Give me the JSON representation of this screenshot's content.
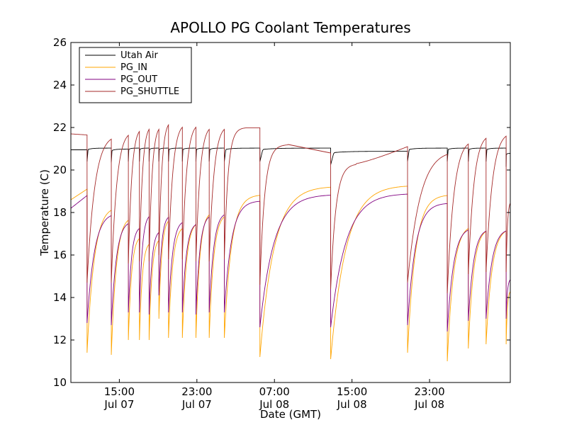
{
  "chart_data": {
    "type": "line",
    "title": "APOLLO PG Coolant Temperatures",
    "xlabel": "Date (GMT)",
    "ylabel": "Temperature (C)",
    "x_unit": "hours since Jul 07 10:00 GMT",
    "xlim": [
      0,
      45.33
    ],
    "ylim": [
      10,
      26
    ],
    "yticks": [
      10,
      12,
      14,
      16,
      18,
      20,
      22,
      24,
      26
    ],
    "xticks": [
      {
        "x": 5,
        "line1": "15:00",
        "line2": "Jul 07"
      },
      {
        "x": 13,
        "line1": "23:00",
        "line2": "Jul 07"
      },
      {
        "x": 21,
        "line1": "07:00",
        "line2": "Jul 08"
      },
      {
        "x": 29,
        "line1": "15:00",
        "line2": "Jul 08"
      },
      {
        "x": 37,
        "line1": "23:00",
        "line2": "Jul 08"
      }
    ],
    "legend_position": "upper-left",
    "cycles": [
      {
        "start": 1.67,
        "end": 4.17,
        "air": 20.95,
        "in_start": 11.4,
        "in_end": 18.7,
        "out_start": 12.8,
        "out_end": 18.3,
        "sh_start": 14.7,
        "sh_end": 22.2
      },
      {
        "start": 4.17,
        "end": 5.93,
        "air": 20.9,
        "in_start": 11.3,
        "in_end": 18.2,
        "out_start": 12.7,
        "out_end": 17.9,
        "sh_start": 14.7,
        "sh_end": 22.4
      },
      {
        "start": 5.93,
        "end": 7.07,
        "air": 20.95,
        "in_start": 12.0,
        "in_end": 17.2,
        "out_start": 13.3,
        "out_end": 17.6,
        "sh_start": 15.6,
        "sh_end": 22.5
      },
      {
        "start": 7.07,
        "end": 8.07,
        "air": 20.95,
        "in_start": 12.0,
        "in_end": 16.9,
        "out_start": 13.3,
        "out_end": 18.2,
        "sh_start": 15.7,
        "sh_end": 22.6
      },
      {
        "start": 8.07,
        "end": 9.08,
        "air": 20.95,
        "in_start": 12.0,
        "in_end": 17.1,
        "out_start": 13.2,
        "out_end": 17.4,
        "sh_start": 15.7,
        "sh_end": 22.6
      },
      {
        "start": 9.08,
        "end": 10.07,
        "air": 20.95,
        "in_start": 13.0,
        "in_end": 18.0,
        "out_start": 14.1,
        "out_end": 18.1,
        "sh_start": 16.0,
        "sh_end": 22.8
      },
      {
        "start": 10.07,
        "end": 11.5,
        "air": 20.95,
        "in_start": 12.1,
        "in_end": 17.7,
        "out_start": 13.3,
        "out_end": 17.9,
        "sh_start": 15.8,
        "sh_end": 22.7
      },
      {
        "start": 11.5,
        "end": 12.9,
        "air": 20.95,
        "in_start": 12.1,
        "in_end": 17.9,
        "out_start": 13.3,
        "out_end": 17.8,
        "sh_start": 15.8,
        "sh_end": 22.7
      },
      {
        "start": 12.9,
        "end": 14.27,
        "air": 20.95,
        "in_start": 12.1,
        "in_end": 18.4,
        "out_start": 13.2,
        "out_end": 18.2,
        "sh_start": 15.7,
        "sh_end": 22.6
      },
      {
        "start": 14.27,
        "end": 15.83,
        "air": 20.95,
        "in_start": 12.1,
        "in_end": 18.3,
        "out_start": 13.3,
        "out_end": 18.3,
        "sh_start": 15.7,
        "sh_end": 22.6
      },
      {
        "start": 15.83,
        "end": 19.5,
        "air": 20.95,
        "in_start": 12.1,
        "in_end": 18.9,
        "out_start": 13.3,
        "out_end": 18.6,
        "sh_start": 15.8,
        "sh_end": 22.0,
        "sh_plateau": true
      },
      {
        "start": 19.5,
        "end": 26.8,
        "air": 20.95,
        "in_start": 11.2,
        "in_end": 19.3,
        "out_start": 12.6,
        "out_end": 18.9,
        "sh_start": 14.6,
        "sh_end": 21.2,
        "sh_drift_end": 20.8
      },
      {
        "start": 26.8,
        "end": 34.73,
        "air": 20.8,
        "in_start": 11.1,
        "in_end": 19.35,
        "out_start": 12.6,
        "out_end": 18.95,
        "sh_start": 14.4,
        "sh_end": 21.1,
        "sh_lag": true
      },
      {
        "start": 34.73,
        "end": 38.83,
        "air": 20.95,
        "in_start": 11.4,
        "in_end": 18.9,
        "out_start": 12.7,
        "out_end": 18.5,
        "sh_start": 14.7,
        "sh_end": 21.4
      },
      {
        "start": 38.83,
        "end": 41.0,
        "air": 20.95,
        "in_start": 11.0,
        "in_end": 17.8,
        "out_start": 12.4,
        "out_end": 17.6,
        "sh_start": 14.2,
        "sh_end": 22.0
      },
      {
        "start": 41.0,
        "end": 42.83,
        "air": 20.95,
        "in_start": 11.6,
        "in_end": 17.6,
        "out_start": 12.9,
        "out_end": 17.5,
        "sh_start": 15.1,
        "sh_end": 22.2
      },
      {
        "start": 42.83,
        "end": 44.9,
        "air": 20.95,
        "in_start": 11.8,
        "in_end": 17.6,
        "out_start": 13.0,
        "out_end": 17.5,
        "sh_start": 15.2,
        "sh_end": 22.3
      },
      {
        "start": 44.9,
        "end": 45.33,
        "air": 20.7,
        "in_start": 11.8,
        "in_end": 14.5,
        "out_start": 13.0,
        "out_end": 15.0,
        "sh_start": 15.2,
        "sh_end": 18.8
      }
    ],
    "initial": {
      "air": 20.95,
      "in": 18.6,
      "in_end": 19.1,
      "out": 18.2,
      "out_end": 18.8,
      "sh": 21.7,
      "sh_end": 21.65
    },
    "series": [
      {
        "name": "Utah Air",
        "key": "air",
        "color": "#000000"
      },
      {
        "name": "PG_IN",
        "key": "in",
        "color": "#ffa500"
      },
      {
        "name": "PG_OUT",
        "key": "out",
        "color": "#800080"
      },
      {
        "name": "PG_SHUTTLE",
        "key": "sh",
        "color": "#a52a2a"
      }
    ]
  }
}
